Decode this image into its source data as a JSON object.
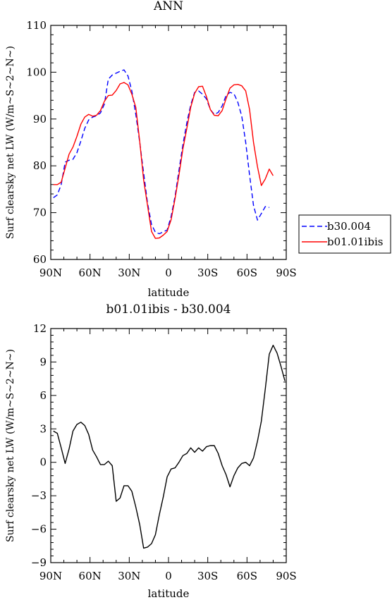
{
  "chart_data": [
    {
      "type": "line",
      "title": "ANN",
      "xlabel": "latitude",
      "ylabel": "Surf clearsky net LW (W/m~S~2~N~)",
      "xlim": [
        90,
        -90
      ],
      "ylim": [
        60,
        110
      ],
      "x_ticks": [
        {
          "value": 90,
          "label": "90N"
        },
        {
          "value": 60,
          "label": "60N"
        },
        {
          "value": 30,
          "label": "30N"
        },
        {
          "value": 0,
          "label": "0"
        },
        {
          "value": -30,
          "label": "30S"
        },
        {
          "value": -60,
          "label": "60S"
        },
        {
          "value": -90,
          "label": "90S"
        }
      ],
      "y_ticks": [
        60,
        70,
        80,
        90,
        100,
        110
      ],
      "legend_position": "right",
      "series": [
        {
          "name": "b30.004",
          "color": "#0000ff",
          "dash": true,
          "points": [
            [
              88,
              73.2
            ],
            [
              85,
              73.8
            ],
            [
              82,
              76
            ],
            [
              79,
              80.8
            ],
            [
              76,
              81.2
            ],
            [
              73,
              81.4
            ],
            [
              70,
              82.8
            ],
            [
              67,
              85.3
            ],
            [
              64,
              88
            ],
            [
              61,
              89.8
            ],
            [
              58,
              90.4
            ],
            [
              55,
              90.7
            ],
            [
              52,
              91.3
            ],
            [
              49,
              93.2
            ],
            [
              46,
              98.5
            ],
            [
              43,
              99.4
            ],
            [
              40,
              99.8
            ],
            [
              37,
              100.2
            ],
            [
              34,
              100.5
            ],
            [
              31,
              99.2
            ],
            [
              28,
              96
            ],
            [
              25,
              91
            ],
            [
              22,
              85
            ],
            [
              19,
              78.5
            ],
            [
              16,
              72
            ],
            [
              13,
              67.5
            ],
            [
              10,
              65.8
            ],
            [
              7,
              65.5
            ],
            [
              4,
              65.9
            ],
            [
              1,
              66.3
            ],
            [
              -2,
              69.2
            ],
            [
              -5,
              73.5
            ],
            [
              -8,
              79
            ],
            [
              -11,
              84.5
            ],
            [
              -14,
              89.2
            ],
            [
              -17,
              93
            ],
            [
              -20,
              95.7
            ],
            [
              -23,
              96
            ],
            [
              -26,
              95.3
            ],
            [
              -29,
              94.3
            ],
            [
              -32,
              92
            ],
            [
              -35,
              91
            ],
            [
              -38,
              91.4
            ],
            [
              -41,
              92.8
            ],
            [
              -44,
              95
            ],
            [
              -47,
              95.7
            ],
            [
              -50,
              95.4
            ],
            [
              -53,
              93.6
            ],
            [
              -56,
              90.6
            ],
            [
              -59,
              85
            ],
            [
              -62,
              78
            ],
            [
              -65,
              71.5
            ],
            [
              -68,
              68.4
            ],
            [
              -71,
              69.8
            ],
            [
              -74,
              71.3
            ],
            [
              -77,
              71.1
            ]
          ]
        },
        {
          "name": "b01.01ibis",
          "color": "#ff0000",
          "dash": false,
          "points": [
            [
              88,
              76
            ],
            [
              85,
              76
            ],
            [
              82,
              76.5
            ],
            [
              79,
              79.5
            ],
            [
              76,
              82.5
            ],
            [
              73,
              84
            ],
            [
              70,
              86.3
            ],
            [
              67,
              88.9
            ],
            [
              64,
              90.4
            ],
            [
              61,
              91
            ],
            [
              58,
              90.6
            ],
            [
              55,
              90.8
            ],
            [
              52,
              91.8
            ],
            [
              49,
              93.8
            ],
            [
              46,
              95
            ],
            [
              43,
              95.1
            ],
            [
              40,
              96.1
            ],
            [
              37,
              97.5
            ],
            [
              34,
              97.8
            ],
            [
              31,
              97.3
            ],
            [
              28,
              95.3
            ],
            [
              25,
              92.5
            ],
            [
              22,
              85.2
            ],
            [
              19,
              77
            ],
            [
              16,
              71.5
            ],
            [
              13,
              66
            ],
            [
              10,
              64.5
            ],
            [
              7,
              64.6
            ],
            [
              4,
              65.2
            ],
            [
              1,
              66
            ],
            [
              -2,
              68.5
            ],
            [
              -5,
              73
            ],
            [
              -8,
              78
            ],
            [
              -11,
              83.6
            ],
            [
              -14,
              88
            ],
            [
              -17,
              92.5
            ],
            [
              -20,
              95.5
            ],
            [
              -23,
              96.9
            ],
            [
              -26,
              97
            ],
            [
              -29,
              94.8
            ],
            [
              -32,
              92
            ],
            [
              -35,
              90.8
            ],
            [
              -38,
              90.7
            ],
            [
              -41,
              91.8
            ],
            [
              -44,
              94.3
            ],
            [
              -47,
              96.6
            ],
            [
              -50,
              97.3
            ],
            [
              -53,
              97.4
            ],
            [
              -56,
              97.1
            ],
            [
              -59,
              96
            ],
            [
              -62,
              92
            ],
            [
              -65,
              85
            ],
            [
              -68,
              79.8
            ],
            [
              -71,
              75.8
            ],
            [
              -74,
              77.2
            ],
            [
              -77,
              79.3
            ],
            [
              -80,
              77.9
            ]
          ]
        }
      ]
    },
    {
      "type": "line",
      "title": "b01.01ibis - b30.004",
      "xlabel": "latitude",
      "ylabel": "Surf clearsky net LW (W/m~S~2~N~)",
      "xlim": [
        90,
        -90
      ],
      "ylim": [
        -9,
        12
      ],
      "x_ticks": [
        {
          "value": 90,
          "label": "90N"
        },
        {
          "value": 60,
          "label": "60N"
        },
        {
          "value": 30,
          "label": "30N"
        },
        {
          "value": 0,
          "label": "0"
        },
        {
          "value": -30,
          "label": "30S"
        },
        {
          "value": -60,
          "label": "60S"
        },
        {
          "value": -90,
          "label": "90S"
        }
      ],
      "y_ticks": [
        -9,
        -6,
        -3,
        0,
        3,
        6,
        9,
        12
      ],
      "series": [
        {
          "color": "#000000",
          "dash": false,
          "points": [
            [
              88,
              2.8
            ],
            [
              85,
              2.6
            ],
            [
              82,
              1.3
            ],
            [
              79,
              -0.1
            ],
            [
              76,
              1.2
            ],
            [
              73,
              2.8
            ],
            [
              70,
              3.4
            ],
            [
              67,
              3.6
            ],
            [
              64,
              3.3
            ],
            [
              61,
              2.5
            ],
            [
              58,
              1.1
            ],
            [
              55,
              0.5
            ],
            [
              52,
              -0.2
            ],
            [
              49,
              -0.2
            ],
            [
              46,
              0.1
            ],
            [
              43,
              -0.3
            ],
            [
              40,
              -3.5
            ],
            [
              37,
              -3.2
            ],
            [
              34,
              -2.1
            ],
            [
              31,
              -2.1
            ],
            [
              28,
              -2.6
            ],
            [
              25,
              -4
            ],
            [
              22,
              -5.6
            ],
            [
              19,
              -7.7
            ],
            [
              16,
              -7.6
            ],
            [
              13,
              -7.3
            ],
            [
              10,
              -6.5
            ],
            [
              7,
              -4.7
            ],
            [
              4,
              -3.1
            ],
            [
              1,
              -1.3
            ],
            [
              -2,
              -0.6
            ],
            [
              -5,
              -0.5
            ],
            [
              -8,
              0
            ],
            [
              -11,
              0.6
            ],
            [
              -14,
              0.8
            ],
            [
              -17,
              1.3
            ],
            [
              -20,
              0.9
            ],
            [
              -23,
              1.3
            ],
            [
              -26,
              1
            ],
            [
              -29,
              1.4
            ],
            [
              -32,
              1.5
            ],
            [
              -35,
              1.5
            ],
            [
              -38,
              0.8
            ],
            [
              -41,
              -0.3
            ],
            [
              -44,
              -1.1
            ],
            [
              -47,
              -2.2
            ],
            [
              -50,
              -1.2
            ],
            [
              -53,
              -0.5
            ],
            [
              -56,
              -0.1
            ],
            [
              -59,
              0
            ],
            [
              -62,
              -0.3
            ],
            [
              -65,
              0.4
            ],
            [
              -68,
              1.9
            ],
            [
              -71,
              3.7
            ],
            [
              -74,
              6.6
            ],
            [
              -77,
              9.7
            ],
            [
              -80,
              10.5
            ],
            [
              -83,
              9.8
            ],
            [
              -86,
              8.6
            ],
            [
              -89,
              7.3
            ]
          ]
        }
      ]
    }
  ]
}
